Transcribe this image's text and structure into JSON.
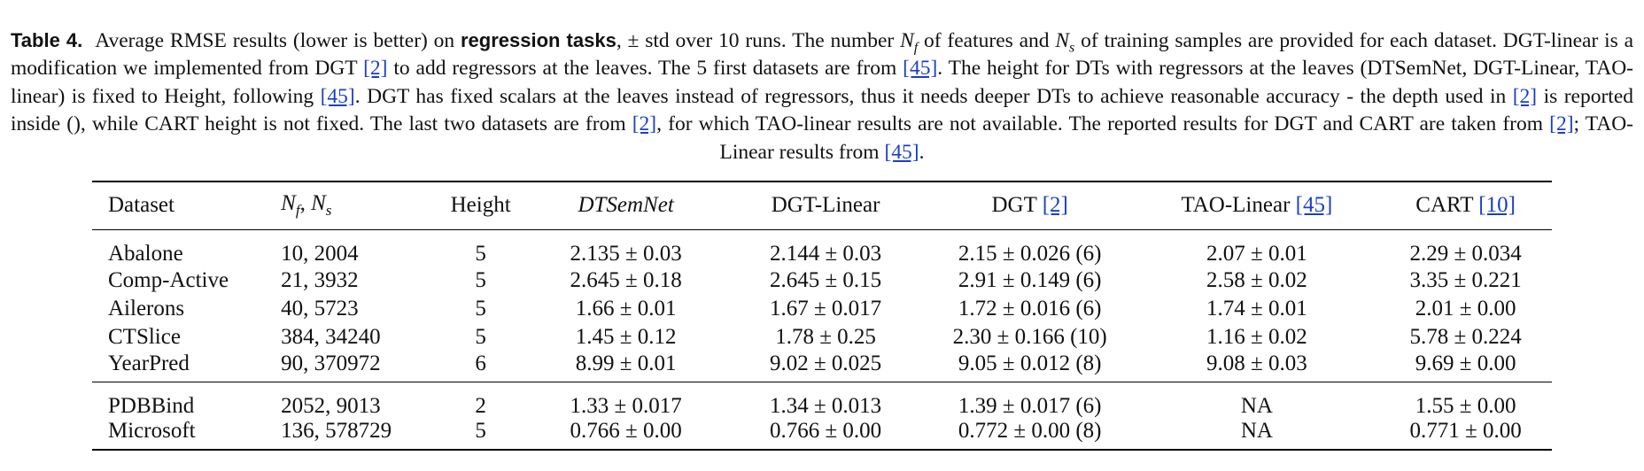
{
  "caption": {
    "label": "Table 4.",
    "p1": "Average RMSE results (lower is better) on ",
    "bold_phrase": "regression tasks",
    "p2": ", ± std over 10 runs. The number ",
    "nf_var": "N",
    "nf_sub": "f",
    "p3": " of features and ",
    "ns_var": "N",
    "ns_sub": "s",
    "p4": " of training samples are provided for each dataset. DGT-linear is a modification we implemented from DGT ",
    "cite_dgt": "[2]",
    "p5": " to add regressors at the leaves. The 5 first datasets are from ",
    "cite_tao": "[45]",
    "p6": ". The height for DTs with regressors at the leaves (DTSemNet, DGT-Linear, TAO-linear) is fixed to Height, following ",
    "cite_tao_2": "[45]",
    "p7": ". DGT has fixed scalars at the leaves instead of regressors, thus it needs deeper DTs to achieve reasonable accuracy - the depth used in ",
    "cite_dgt_2": "[2]",
    "p8": " is reported inside (), while CART height is not fixed. The last two datasets are from ",
    "cite_dgt_3": "[2]",
    "p9": ", for which TAO-linear results are not available. The reported results for DGT and CART are taken from ",
    "cite_dgt_4": "[2]",
    "p10": "; TAO-Linear results from ",
    "cite_tao_3": "[45]",
    "p11": "."
  },
  "table": {
    "headers": {
      "dataset": "Dataset",
      "nf_ns_a": "N",
      "nf_ns_a_sub": "f",
      "nf_ns_sep": ", ",
      "nf_ns_b": "N",
      "nf_ns_b_sub": "s",
      "height": "Height",
      "dtsemnet": "DTSemNet",
      "dgt_linear": "DGT-Linear",
      "dgt": "DGT ",
      "dgt_cite": "[2]",
      "tao_linear": "TAO-Linear ",
      "tao_cite": "[45]",
      "cart": "CART ",
      "cart_cite": "[10]"
    },
    "rows": [
      {
        "dataset": "Abalone",
        "nf_ns": "10, 2004",
        "height": "5",
        "dtsemnet": "2.135 ± 0.03",
        "dgt_linear": "2.144 ± 0.03",
        "dgt": "2.15 ± 0.026 (6)",
        "tao_linear": "2.07 ± 0.01",
        "cart": "2.29 ± 0.034"
      },
      {
        "dataset": "Comp-Active",
        "nf_ns": "21, 3932",
        "height": "5",
        "dtsemnet": "2.645 ± 0.18",
        "dgt_linear": "2.645 ± 0.15",
        "dgt": "2.91 ± 0.149 (6)",
        "tao_linear": "2.58 ± 0.02",
        "cart": "3.35 ± 0.221"
      },
      {
        "dataset": "Ailerons",
        "nf_ns": "40, 5723",
        "height": "5",
        "dtsemnet": "1.66 ± 0.01",
        "dgt_linear": "1.67 ± 0.017",
        "dgt": "1.72 ± 0.016 (6)",
        "tao_linear": "1.74 ± 0.01",
        "cart": "2.01 ± 0.00"
      },
      {
        "dataset": "CTSlice",
        "nf_ns": "384, 34240",
        "height": "5",
        "dtsemnet": "1.45 ± 0.12",
        "dgt_linear": "1.78 ± 0.25",
        "dgt": "2.30 ± 0.166 (10)",
        "tao_linear": "1.16 ± 0.02",
        "cart": "5.78 ± 0.224"
      },
      {
        "dataset": "YearPred",
        "nf_ns": "90, 370972",
        "height": "6",
        "dtsemnet": "8.99 ± 0.01",
        "dgt_linear": "9.02 ± 0.025",
        "dgt": "9.05 ± 0.012 (8)",
        "tao_linear": "9.08 ± 0.03",
        "cart": "9.69 ± 0.00"
      },
      {
        "dataset": "PDBBind",
        "nf_ns": "2052, 9013",
        "height": "2",
        "dtsemnet": "1.33 ± 0.017",
        "dgt_linear": "1.34 ± 0.013",
        "dgt": "1.39 ± 0.017 (6)",
        "tao_linear": "NA",
        "cart": "1.55 ± 0.00"
      },
      {
        "dataset": "Microsoft",
        "nf_ns": "136, 578729",
        "height": "5",
        "dtsemnet": "0.766 ± 0.00",
        "dgt_linear": "0.766 ± 0.00",
        "dgt": "0.772 ± 0.00 (8)",
        "tao_linear": "NA",
        "cart": "0.771 ± 0.00"
      }
    ],
    "bold_cells": [
      {
        "row": 0,
        "col": "tao_linear"
      },
      {
        "row": 1,
        "col": "tao_linear"
      },
      {
        "row": 2,
        "col": "dtsemnet"
      },
      {
        "row": 3,
        "col": "tao_linear"
      },
      {
        "row": 4,
        "col": "dtsemnet"
      },
      {
        "row": 5,
        "col": "dtsemnet"
      },
      {
        "row": 6,
        "col": "dtsemnet"
      },
      {
        "row": 6,
        "col": "dgt_linear"
      }
    ]
  },
  "colors": {
    "link": "#1a3fc7",
    "text": "#111111",
    "background": "#ffffff"
  }
}
